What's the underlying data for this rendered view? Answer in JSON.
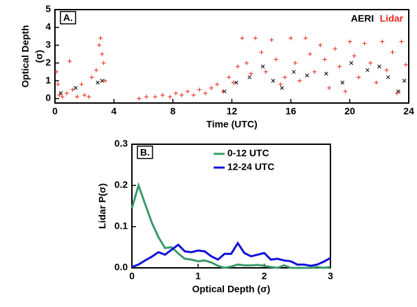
{
  "chart_data": [
    {
      "type": "scatter",
      "panel_label": "A.",
      "x_label": "Time (UTC)",
      "y_label": [
        "Optical Depth",
        "(σ)"
      ],
      "xlim": [
        0,
        24
      ],
      "xticks": [
        0,
        4,
        8,
        12,
        16,
        20,
        24
      ],
      "ylim": [
        -0.25,
        5
      ],
      "yticks": [
        0,
        1,
        2,
        3,
        4,
        5
      ],
      "legend": "top-right",
      "series": [
        {
          "name": "AERI",
          "color": "#000000",
          "marker": "x",
          "x": [
            0.4,
            1.4,
            2.9,
            3.2,
            11.5,
            12.3,
            13.2,
            14.1,
            14.8,
            15.4,
            16.2,
            17.1,
            18.4,
            19.5,
            20.1,
            21.2,
            22.0,
            22.6,
            23.3,
            23.7
          ],
          "y": [
            0.3,
            0.6,
            0.9,
            1.0,
            0.4,
            0.9,
            1.2,
            1.8,
            1.0,
            0.6,
            1.5,
            1.3,
            1.4,
            0.9,
            2.0,
            1.6,
            1.8,
            1.2,
            0.4,
            1.0
          ]
        },
        {
          "name": "Lidar",
          "color": "#e8261c",
          "marker": "+",
          "x": [
            0.1,
            0.2,
            0.3,
            0.5,
            0.8,
            1.0,
            1.2,
            1.5,
            1.8,
            2.0,
            2.3,
            2.5,
            2.8,
            3.0,
            3.1,
            3.2,
            3.3,
            3.4,
            5.7,
            6.2,
            6.8,
            7.3,
            7.8,
            8.2,
            8.6,
            9.0,
            9.4,
            9.8,
            10.2,
            10.6,
            11.0,
            11.4,
            11.8,
            12.1,
            12.4,
            12.7,
            13.0,
            13.3,
            13.6,
            14.0,
            14.3,
            14.7,
            15.0,
            15.3,
            15.6,
            16.0,
            16.3,
            16.6,
            17.0,
            17.3,
            17.6,
            18.0,
            18.3,
            18.6,
            19.0,
            19.3,
            19.7,
            20.0,
            20.3,
            20.6,
            21.0,
            21.4,
            21.8,
            22.2,
            22.5,
            22.9,
            23.2,
            23.5,
            23.8
          ],
          "y": [
            1.5,
            0.8,
            0.2,
            0.1,
            0.3,
            2.1,
            0.5,
            0.1,
            0.8,
            0.2,
            0.1,
            1.2,
            1.6,
            3.0,
            3.4,
            2.5,
            2.0,
            1.0,
            0.0,
            0.1,
            0.1,
            0.2,
            0.1,
            0.3,
            0.2,
            0.4,
            0.2,
            0.5,
            0.3,
            0.6,
            0.8,
            0.4,
            1.2,
            0.9,
            1.8,
            3.4,
            2.0,
            1.4,
            3.4,
            2.6,
            1.5,
            3.3,
            2.2,
            0.8,
            1.2,
            3.4,
            2.0,
            1.0,
            3.4,
            2.5,
            1.5,
            3.0,
            2.2,
            0.6,
            2.8,
            1.8,
            0.4,
            3.2,
            2.4,
            1.2,
            3.1,
            2.0,
            0.9,
            3.2,
            1.6,
            2.6,
            0.3,
            3.2,
            1.9
          ]
        }
      ]
    },
    {
      "type": "line",
      "panel_label": "B.",
      "x_label": "Optical Depth (σ)",
      "y_label": [
        "Lidar P(σ)"
      ],
      "xlim": [
        0,
        3
      ],
      "xticks": [
        0,
        1,
        2,
        3
      ],
      "ylim": [
        0,
        0.3
      ],
      "yticks": [
        {
          "value": 0,
          "label": "0.0"
        },
        0.1,
        0.2,
        0.3
      ],
      "legend": "top-right",
      "x": [
        0,
        0.1,
        0.2,
        0.3,
        0.4,
        0.5,
        0.6,
        0.7,
        0.8,
        0.9,
        1.0,
        1.1,
        1.2,
        1.3,
        1.4,
        1.5,
        1.6,
        1.7,
        1.8,
        1.9,
        2.0,
        2.1,
        2.2,
        2.3,
        2.4,
        2.5,
        2.6,
        2.7,
        2.8,
        2.9,
        3.0
      ],
      "series": [
        {
          "name": "0-12 UTC",
          "color": "#3a9a6a",
          "values": [
            0.145,
            0.2,
            0.155,
            0.11,
            0.075,
            0.048,
            0.05,
            0.035,
            0.022,
            0.02,
            0.016,
            0.018,
            0.013,
            0.005,
            0.0,
            0.003,
            0.008,
            0.006,
            0.006,
            0.007,
            0.005,
            0.002,
            0.0,
            0.006,
            0.0,
            0.0,
            0.0,
            0.0,
            0.002,
            0.0,
            0.002
          ]
        },
        {
          "name": "12-24 UTC",
          "color": "#1010d8",
          "values": [
            0.002,
            0.008,
            0.018,
            0.027,
            0.038,
            0.032,
            0.044,
            0.056,
            0.04,
            0.038,
            0.042,
            0.04,
            0.028,
            0.02,
            0.034,
            0.034,
            0.06,
            0.036,
            0.028,
            0.032,
            0.036,
            0.02,
            0.022,
            0.018,
            0.016,
            0.008,
            0.008,
            0.005,
            0.008,
            0.015,
            0.024
          ]
        }
      ]
    }
  ]
}
